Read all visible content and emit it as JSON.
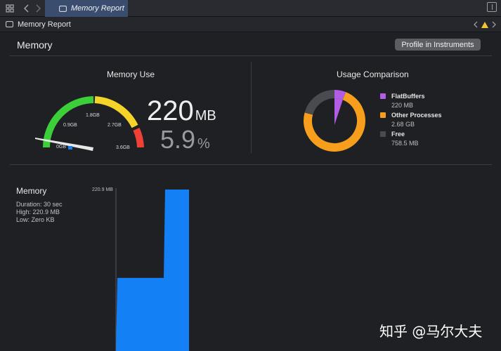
{
  "tabbar": {
    "active_tab": "Memory Report"
  },
  "breadcrumb": {
    "label": "Memory Report"
  },
  "header": {
    "title": "Memory",
    "profile_button": "Profile in Instruments"
  },
  "memory_use": {
    "title": "Memory Use",
    "value": "220",
    "value_unit": "MB",
    "percent": "5.9",
    "percent_unit": "%",
    "gauge_labels": [
      "0GB",
      "0.9GB",
      "1.8GB",
      "2.7GB",
      "3.6GB"
    ],
    "gauge_fraction": 0.059,
    "colors": {
      "green": "#3ccf3a",
      "yellow": "#f5d42a",
      "red": "#ef4136",
      "needle": "#e8e8e8"
    }
  },
  "usage_comparison": {
    "title": "Usage Comparison",
    "items": [
      {
        "name": "FlatBuffers",
        "value": "220 MB",
        "mb": 220,
        "color": "#b25de6"
      },
      {
        "name": "Other Processes",
        "value": "2.68 GB",
        "mb": 2680,
        "color": "#f79f1c"
      },
      {
        "name": "Free",
        "value": "758.5 MB",
        "mb": 758.5,
        "color": "#4a4b50"
      }
    ]
  },
  "memory_graph": {
    "title": "Memory",
    "duration": "Duration: 30 sec",
    "high": "High: 220.9 MB",
    "low": "Low: Zero KB",
    "y_max_label": "220.9 MB",
    "fill_color": "#1380f5"
  },
  "chart_data": {
    "type": "area",
    "x": [
      0,
      1,
      2,
      3,
      4,
      5
    ],
    "values": [
      0,
      100,
      100,
      220.9,
      220.9,
      0
    ],
    "ylim": [
      0,
      220.9
    ],
    "ylabel": "",
    "xlabel": ""
  },
  "watermark": "知乎 @马尔大夫"
}
